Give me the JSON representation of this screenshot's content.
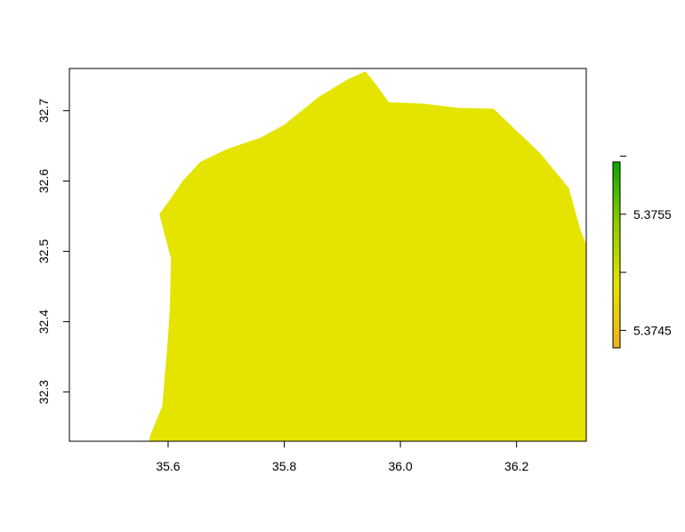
{
  "chart_data": {
    "type": "heatmap",
    "title": "",
    "xlabel": "",
    "ylabel": "",
    "xlim": [
      35.43,
      36.32
    ],
    "ylim": [
      32.23,
      32.76
    ],
    "x_ticks": [
      {
        "value": 35.6,
        "label": "35.6"
      },
      {
        "value": 35.8,
        "label": "35.8"
      },
      {
        "value": 36.0,
        "label": "36.0"
      },
      {
        "value": 36.2,
        "label": "36.2"
      }
    ],
    "y_ticks": [
      {
        "value": 32.3,
        "label": "32.3"
      },
      {
        "value": 32.4,
        "label": "32.4"
      },
      {
        "value": 32.5,
        "label": "32.5"
      },
      {
        "value": 32.6,
        "label": "32.6"
      },
      {
        "value": 32.7,
        "label": "32.7"
      }
    ],
    "region": {
      "value": 5.375,
      "color": "#e5e400",
      "boundary": [
        [
          35.567,
          32.23
        ],
        [
          35.57,
          32.24
        ],
        [
          35.58,
          32.26
        ],
        [
          35.59,
          32.28
        ],
        [
          35.595,
          32.33
        ],
        [
          35.6,
          32.38
        ],
        [
          35.603,
          32.42
        ],
        [
          35.605,
          32.49
        ],
        [
          35.595,
          32.52
        ],
        [
          35.585,
          32.553
        ],
        [
          35.6,
          32.57
        ],
        [
          35.625,
          32.6
        ],
        [
          35.655,
          32.627
        ],
        [
          35.7,
          32.645
        ],
        [
          35.76,
          32.662
        ],
        [
          35.8,
          32.68
        ],
        [
          35.86,
          32.72
        ],
        [
          35.91,
          32.745
        ],
        [
          35.94,
          32.756
        ],
        [
          35.96,
          32.735
        ],
        [
          35.98,
          32.712
        ],
        [
          36.04,
          32.71
        ],
        [
          36.1,
          32.704
        ],
        [
          36.16,
          32.703
        ],
        [
          36.24,
          32.64
        ],
        [
          36.29,
          32.59
        ],
        [
          36.31,
          32.53
        ],
        [
          36.32,
          32.51
        ],
        [
          36.32,
          32.23
        ]
      ]
    },
    "legend": {
      "position": "right",
      "range": [
        5.37435,
        5.37595
      ],
      "colors": [
        "#f0b020",
        "#e6e400",
        "#8fcc00",
        "#0ca500"
      ],
      "ticks": [
        {
          "value": 5.3745,
          "label": "5.3745"
        },
        {
          "value": 5.375,
          "label": ""
        },
        {
          "value": 5.3755,
          "label": "5.3755"
        },
        {
          "value": 5.376,
          "label": ""
        }
      ]
    }
  }
}
